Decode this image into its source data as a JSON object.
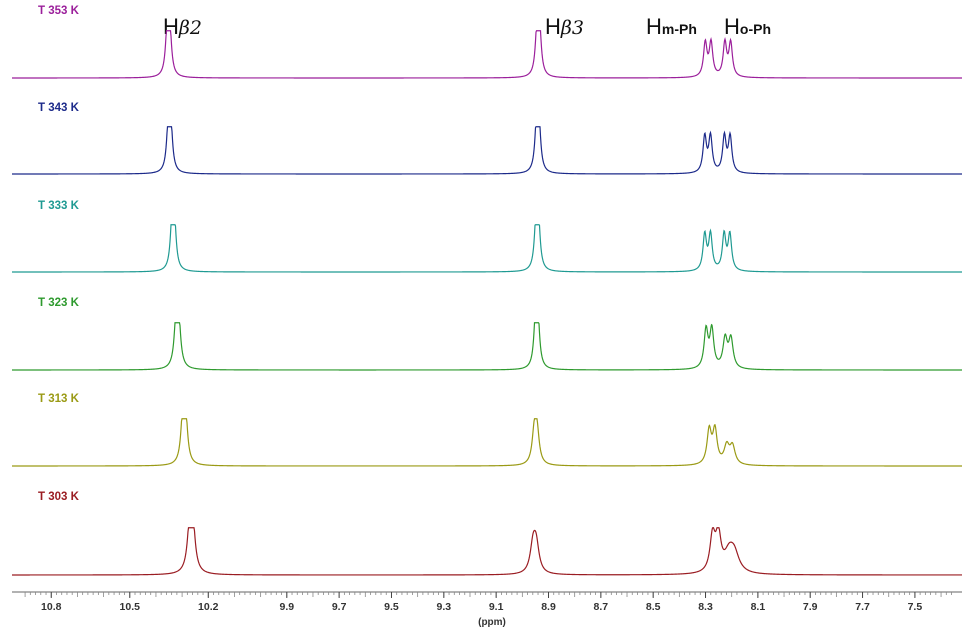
{
  "chart_data": {
    "type": "line",
    "xlabel": "(ppm)",
    "xlim": [
      10.95,
      7.32
    ],
    "x_reversed": true,
    "x_ticks": [
      "10.8",
      "10.5",
      "10.2",
      "9.9",
      "9.7",
      "9.5",
      "9.3",
      "9.1",
      "8.9",
      "8.7",
      "8.5",
      "8.3",
      "8.1",
      "7.9",
      "7.7",
      "7.5"
    ],
    "peak_labels": [
      {
        "main": "H",
        "greek": "β2",
        "sub": "",
        "ppm": 10.3
      },
      {
        "main": "H",
        "greek": "β3",
        "sub": "",
        "ppm": 8.92
      },
      {
        "main": "H",
        "greek": "",
        "sub": "m-Ph",
        "ppm": 8.3
      },
      {
        "main": "H",
        "greek": "",
        "sub": "o-Ph",
        "ppm": 8.15
      }
    ],
    "series": [
      {
        "name": "T 353 K",
        "color": "#9b1f9b",
        "peaks": [
          {
            "x": 10.352,
            "h": 1.0,
            "w": 0.008,
            "split": 0.008
          },
          {
            "x": 8.939,
            "h": 1.0,
            "w": 0.008,
            "split": 0.008
          },
          {
            "x": 8.29,
            "h": 0.75,
            "w": 0.008,
            "split": 0.022
          },
          {
            "x": 8.215,
            "h": 0.75,
            "w": 0.008,
            "split": 0.022
          }
        ]
      },
      {
        "name": "T 343 K",
        "color": "#1c2a8a",
        "peaks": [
          {
            "x": 10.348,
            "h": 1.0,
            "w": 0.008,
            "split": 0.008
          },
          {
            "x": 8.941,
            "h": 1.0,
            "w": 0.008,
            "split": 0.008
          },
          {
            "x": 8.292,
            "h": 0.8,
            "w": 0.008,
            "split": 0.022
          },
          {
            "x": 8.217,
            "h": 0.8,
            "w": 0.008,
            "split": 0.022
          }
        ]
      },
      {
        "name": "T 333 K",
        "color": "#1f9a92",
        "peaks": [
          {
            "x": 10.334,
            "h": 1.0,
            "w": 0.008,
            "split": 0.008
          },
          {
            "x": 8.943,
            "h": 1.0,
            "w": 0.008,
            "split": 0.008
          },
          {
            "x": 8.292,
            "h": 0.8,
            "w": 0.008,
            "split": 0.022
          },
          {
            "x": 8.218,
            "h": 0.8,
            "w": 0.008,
            "split": 0.022
          }
        ]
      },
      {
        "name": "T 323 K",
        "color": "#2e9a2e",
        "peaks": [
          {
            "x": 10.318,
            "h": 1.0,
            "w": 0.009,
            "split": 0.008
          },
          {
            "x": 8.945,
            "h": 1.0,
            "w": 0.008,
            "split": 0.008
          },
          {
            "x": 8.287,
            "h": 0.85,
            "w": 0.009,
            "split": 0.022
          },
          {
            "x": 8.214,
            "h": 0.65,
            "w": 0.01,
            "split": 0.022
          }
        ]
      },
      {
        "name": "T 313 K",
        "color": "#9a9a14",
        "peaks": [
          {
            "x": 10.292,
            "h": 1.0,
            "w": 0.009,
            "split": 0.01
          },
          {
            "x": 8.949,
            "h": 0.7,
            "w": 0.01,
            "split": 0.01
          },
          {
            "x": 8.275,
            "h": 0.75,
            "w": 0.01,
            "split": 0.022
          },
          {
            "x": 8.208,
            "h": 0.4,
            "w": 0.012,
            "split": 0.022
          }
        ]
      },
      {
        "name": "T 303 K",
        "color": "#9a1c22",
        "peaks": [
          {
            "x": 10.265,
            "h": 1.0,
            "w": 0.011,
            "split": 0.01
          },
          {
            "x": 8.953,
            "h": 0.6,
            "w": 0.013,
            "split": 0.012
          },
          {
            "x": 8.262,
            "h": 0.8,
            "w": 0.012,
            "split": 0.022
          },
          {
            "x": 8.2,
            "h": 0.4,
            "w": 0.022,
            "split": 0.02
          }
        ]
      }
    ]
  }
}
